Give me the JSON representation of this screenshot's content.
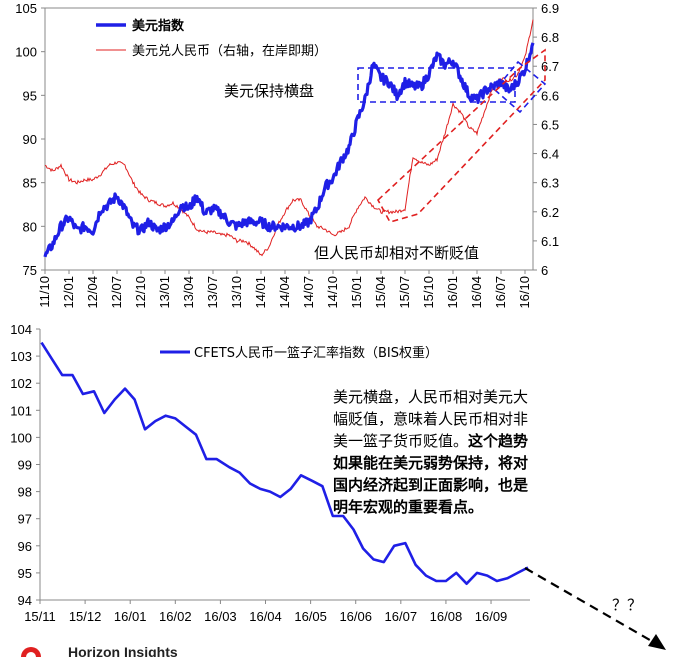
{
  "colors": {
    "blue": "#1f1fe6",
    "red": "#e02020"
  },
  "chart_data": [
    {
      "type": "line",
      "x_ticks": [
        "11/10",
        "12/01",
        "12/04",
        "12/07",
        "12/10",
        "13/01",
        "13/04",
        "13/07",
        "13/10",
        "14/01",
        "14/04",
        "14/07",
        "14/10",
        "15/01",
        "15/04",
        "15/07",
        "15/10",
        "16/01",
        "16/04",
        "16/07",
        "16/10"
      ],
      "y_left_ticks": [
        "75",
        "80",
        "85",
        "90",
        "95",
        "100",
        "105"
      ],
      "y_right_ticks": [
        "6",
        "6.1",
        "6.2",
        "6.3",
        "6.4",
        "6.5",
        "6.6",
        "6.7",
        "6.8",
        "6.9"
      ],
      "ylim_left": [
        75,
        105
      ],
      "ylim_right": [
        6.0,
        6.9
      ],
      "legend_placement": "top-left",
      "series": [
        {
          "name": "美元指数",
          "axis": "left",
          "color": "#1f1fe6",
          "x": [
            "11/10",
            "11/11",
            "11/12",
            "12/01",
            "12/02",
            "12/03",
            "12/04",
            "12/05",
            "12/06",
            "12/07",
            "12/08",
            "12/09",
            "12/10",
            "12/11",
            "12/12",
            "13/01",
            "13/02",
            "13/03",
            "13/04",
            "13/05",
            "13/06",
            "13/07",
            "13/08",
            "13/09",
            "13/10",
            "13/11",
            "13/12",
            "14/01",
            "14/02",
            "14/03",
            "14/04",
            "14/05",
            "14/06",
            "14/07",
            "14/08",
            "14/09",
            "14/10",
            "14/11",
            "14/12",
            "15/01",
            "15/02",
            "15/03",
            "15/04",
            "15/05",
            "15/06",
            "15/07",
            "15/08",
            "15/09",
            "15/10",
            "15/11",
            "15/12",
            "16/01",
            "16/02",
            "16/03",
            "16/04",
            "16/05",
            "16/06",
            "16/07",
            "16/08",
            "16/09",
            "16/10",
            "16/11"
          ],
          "values": [
            76.5,
            78.0,
            80.0,
            81.0,
            79.5,
            80.0,
            79.5,
            82.0,
            82.5,
            83.5,
            82.0,
            80.0,
            79.5,
            80.5,
            79.5,
            80.0,
            80.5,
            82.5,
            82.0,
            83.5,
            81.5,
            82.0,
            81.5,
            80.5,
            80.0,
            80.5,
            80.5,
            80.5,
            80.0,
            80.0,
            80.0,
            80.0,
            80.0,
            80.5,
            82.0,
            84.5,
            85.5,
            87.5,
            89.0,
            92.0,
            94.5,
            98.5,
            97.0,
            96.5,
            95.0,
            96.5,
            96.0,
            96.0,
            97.5,
            99.5,
            98.5,
            99.0,
            97.0,
            95.0,
            94.5,
            95.5,
            96.0,
            96.5,
            95.5,
            96.5,
            98.0,
            101.0
          ]
        },
        {
          "name": "美元兑人民币（右轴，在岸即期）",
          "axis": "right",
          "color": "#e02020",
          "x": [
            "11/10",
            "11/11",
            "11/12",
            "12/01",
            "12/02",
            "12/03",
            "12/04",
            "12/05",
            "12/06",
            "12/07",
            "12/08",
            "12/09",
            "12/10",
            "12/11",
            "12/12",
            "13/01",
            "13/02",
            "13/03",
            "13/04",
            "13/05",
            "13/06",
            "13/07",
            "13/08",
            "13/09",
            "13/10",
            "13/11",
            "13/12",
            "14/01",
            "14/02",
            "14/03",
            "14/04",
            "14/05",
            "14/06",
            "14/07",
            "14/08",
            "14/09",
            "14/10",
            "14/11",
            "14/12",
            "15/01",
            "15/02",
            "15/03",
            "15/04",
            "15/05",
            "15/06",
            "15/07",
            "15/08",
            "15/09",
            "15/10",
            "15/11",
            "15/12",
            "16/01",
            "16/02",
            "16/03",
            "16/04",
            "16/05",
            "16/06",
            "16/07",
            "16/08",
            "16/09",
            "16/10",
            "16/11"
          ],
          "values": [
            6.36,
            6.34,
            6.36,
            6.31,
            6.3,
            6.31,
            6.31,
            6.33,
            6.36,
            6.37,
            6.36,
            6.3,
            6.26,
            6.24,
            6.23,
            6.22,
            6.23,
            6.21,
            6.18,
            6.14,
            6.13,
            6.13,
            6.12,
            6.12,
            6.1,
            6.1,
            6.08,
            6.05,
            6.08,
            6.15,
            6.2,
            6.24,
            6.24,
            6.19,
            6.15,
            6.14,
            6.12,
            6.13,
            6.15,
            6.21,
            6.25,
            6.22,
            6.2,
            6.2,
            6.2,
            6.21,
            6.39,
            6.37,
            6.36,
            6.38,
            6.47,
            6.57,
            6.54,
            6.49,
            6.47,
            6.55,
            6.63,
            6.66,
            6.65,
            6.67,
            6.73,
            6.86
          ]
        }
      ],
      "annotations": [
        "美元保持横盘",
        "但人民币却相对不断贬值"
      ]
    },
    {
      "type": "line",
      "x_ticks": [
        "15/11",
        "15/12",
        "16/01",
        "16/02",
        "16/03",
        "16/04",
        "16/05",
        "16/06",
        "16/07",
        "16/08",
        "16/09"
      ],
      "y_ticks": [
        "94",
        "95",
        "96",
        "97",
        "98",
        "99",
        "100",
        "101",
        "102",
        "103",
        "104"
      ],
      "ylim": [
        94,
        104
      ],
      "legend_placement": "top-center",
      "series": [
        {
          "name": "CFETS人民币一篮子汇率指数（BIS权重）",
          "color": "#1f1fe6",
          "x": [
            "15/11/02",
            "15/11/09",
            "15/11/16",
            "15/11/23",
            "15/11/30",
            "15/12/07",
            "15/12/14",
            "15/12/21",
            "15/12/28",
            "16/01/04",
            "16/01/11",
            "16/01/18",
            "16/01/25",
            "16/02/01",
            "16/02/08",
            "16/02/15",
            "16/02/22",
            "16/02/29",
            "16/03/07",
            "16/03/14",
            "16/03/21",
            "16/03/28",
            "16/04/04",
            "16/04/11",
            "16/04/18",
            "16/04/25",
            "16/05/02",
            "16/05/09",
            "16/05/16",
            "16/05/23",
            "16/05/30",
            "16/06/06",
            "16/06/13",
            "16/06/20",
            "16/06/27",
            "16/07/04",
            "16/07/11",
            "16/07/18",
            "16/07/25",
            "16/08/01",
            "16/08/08",
            "16/08/15",
            "16/08/22",
            "16/08/29",
            "16/09/05",
            "16/09/12",
            "16/09/19",
            "16/09/26"
          ],
          "values": [
            103.5,
            102.9,
            102.3,
            102.3,
            101.6,
            101.7,
            100.9,
            101.4,
            101.8,
            101.4,
            100.3,
            100.6,
            100.8,
            100.7,
            100.4,
            100.1,
            99.2,
            99.2,
            98.9,
            98.7,
            98.3,
            98.1,
            98.0,
            97.8,
            98.1,
            98.6,
            98.4,
            98.2,
            97.1,
            97.1,
            96.6,
            95.9,
            95.5,
            95.4,
            96.0,
            96.1,
            95.3,
            94.9,
            94.7,
            94.7,
            95.0,
            94.6,
            95.0,
            94.9,
            94.7,
            94.8,
            95.0,
            95.2
          ]
        }
      ],
      "annotation_lines": [
        "美元横盘，人民币相对美元大",
        "幅贬值，意味着人民币相对非",
        "美一篮子货币贬值。",
        "这个趋势",
        "如果能在美元弱势保持，将对",
        "国内经济起到正面影响，也是",
        "明年宏观的重要看点。"
      ],
      "question_marks": "？？"
    }
  ],
  "logo_text": "Horizon Insights"
}
